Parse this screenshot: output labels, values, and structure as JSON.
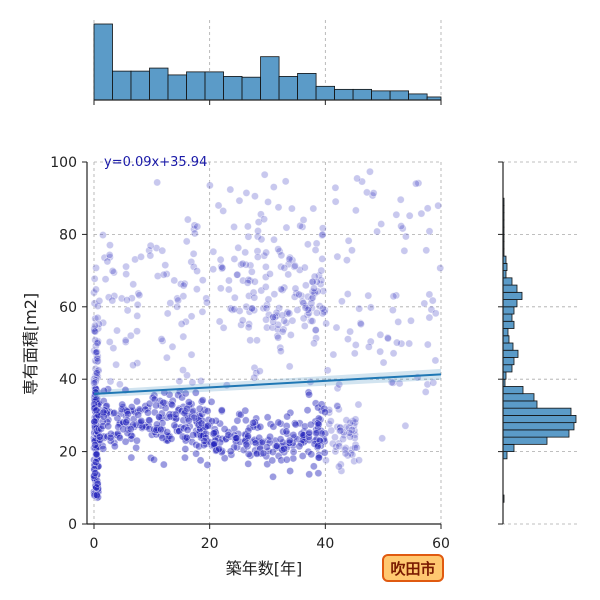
{
  "chart_data": {
    "type": "scatter",
    "title": "",
    "xlabel": "築年数[年]",
    "ylabel": "専有面積[m2]",
    "xlim": [
      0,
      60
    ],
    "ylim": [
      0,
      100
    ],
    "xticks": [
      0,
      20,
      40,
      60
    ],
    "yticks": [
      0,
      20,
      40,
      60,
      80,
      100
    ],
    "grid": true,
    "regression": {
      "label": "y=0.09x+35.94",
      "slope": 0.09,
      "intercept": 35.94,
      "color": "#1f77b4"
    },
    "point_color": "#2222bb",
    "hist_color": "#5b9bc8",
    "marginal_x_hist": {
      "bin_edges": [
        0,
        3.2,
        6.4,
        9.6,
        12.8,
        16,
        19.2,
        22.4,
        25.6,
        28.8,
        32,
        35.2,
        38.4,
        41.6,
        44.8,
        48,
        51.2,
        54.4,
        57.6,
        60
      ],
      "counts": [
        100,
        38,
        38,
        42,
        33,
        37,
        37,
        31,
        30,
        57,
        31,
        35,
        18,
        14,
        14,
        12,
        12,
        8,
        4
      ]
    },
    "marginal_y_hist": {
      "bin_edges": [
        6,
        8,
        10,
        12,
        14,
        16,
        18,
        20,
        22,
        24,
        26,
        28,
        30,
        32,
        34,
        36,
        38,
        40,
        42,
        44,
        46,
        48,
        50,
        52,
        54,
        56,
        58,
        60,
        62,
        64,
        66,
        68,
        70,
        72,
        74,
        76,
        78,
        80,
        82,
        84,
        86,
        88,
        90,
        92,
        94,
        96,
        98,
        100
      ],
      "counts": [
        1,
        0,
        0,
        0,
        0,
        0,
        4,
        11,
        44,
        66,
        71,
        73,
        68,
        34,
        31,
        20,
        2,
        3,
        9,
        11,
        15,
        10,
        6,
        5,
        11,
        9,
        11,
        14,
        19,
        14,
        9,
        3,
        4,
        3,
        1,
        1,
        1,
        1,
        1,
        1,
        1,
        1,
        0,
        0,
        0,
        0,
        0
      ]
    }
  },
  "badge": {
    "text": "吹田市",
    "fill": "#ffc870",
    "stroke": "#e05a10"
  }
}
